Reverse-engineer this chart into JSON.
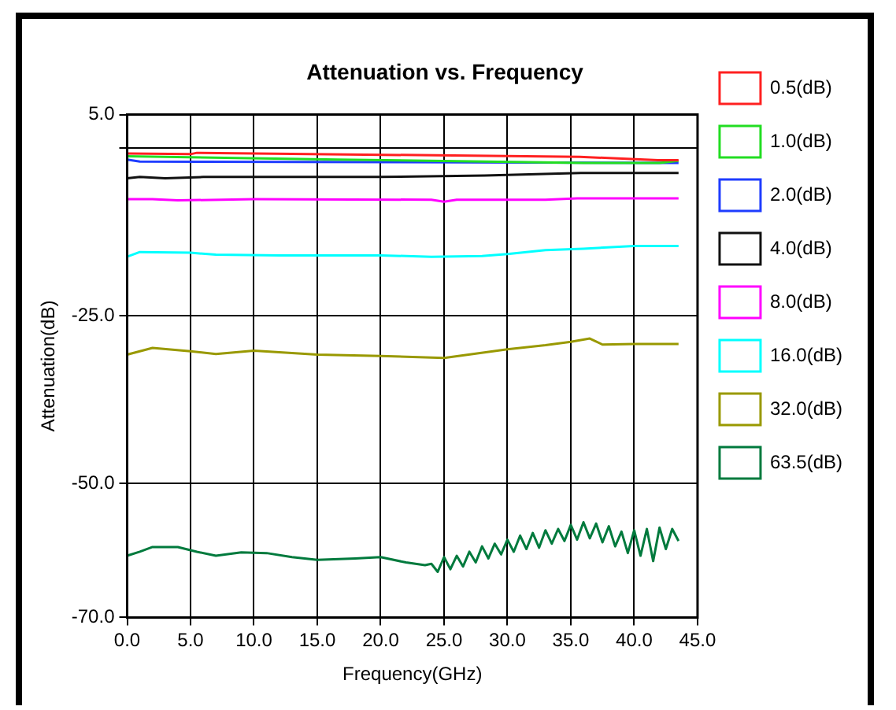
{
  "chart_data": {
    "type": "line",
    "title": "Attenuation vs. Frequency",
    "xlabel": "Frequency(GHz)",
    "ylabel": "Attenuation(dB)",
    "xlim": [
      0,
      45
    ],
    "xticks": [
      {
        "value": 0,
        "label": "0.0"
      },
      {
        "value": 5,
        "label": "5.0"
      },
      {
        "value": 10,
        "label": "10.0"
      },
      {
        "value": 15,
        "label": "15.0"
      },
      {
        "value": 20,
        "label": "20.0"
      },
      {
        "value": 25,
        "label": "25.0"
      },
      {
        "value": 30,
        "label": "30.0"
      },
      {
        "value": 35,
        "label": "35.0"
      },
      {
        "value": 40,
        "label": "40.0"
      },
      {
        "value": 45,
        "label": "45.0"
      }
    ],
    "ylim": [
      -70,
      5
    ],
    "yticks": [
      {
        "value": 5,
        "label": "5.0"
      },
      {
        "value": 0,
        "label": null
      },
      {
        "value": -25,
        "label": "-25.0"
      },
      {
        "value": -50,
        "label": "-50.0"
      },
      {
        "value": -70,
        "label": "-70.0"
      }
    ],
    "grid": true,
    "legend": "right",
    "marker": "none",
    "line_style": "solid",
    "series": [
      {
        "name": "0.5(dB)",
        "color": "#ff2020",
        "x": [
          0,
          5,
          5.5,
          35.7,
          41.9,
          43.5
        ],
        "values": [
          -0.8,
          -0.9,
          -0.7,
          -1.3,
          -1.8,
          -1.8
        ]
      },
      {
        "name": "1.0(dB)",
        "color": "#22dd22",
        "x": [
          0,
          16.6,
          36,
          42,
          43.5
        ],
        "values": [
          -1.2,
          -1.7,
          -2.2,
          -2.2,
          -1.9
        ]
      },
      {
        "name": "2.0(dB)",
        "color": "#1e3cff",
        "x": [
          0,
          1,
          43.5
        ],
        "values": [
          -1.7,
          -2.0,
          -2.2
        ]
      },
      {
        "name": "4.0(dB)",
        "color": "#111111",
        "x": [
          0,
          1,
          3,
          6,
          13,
          20,
          28.2,
          35.8,
          43.5
        ],
        "values": [
          -4.5,
          -4.3,
          -4.5,
          -4.3,
          -4.3,
          -4.3,
          -4.1,
          -3.7,
          -3.7
        ]
      },
      {
        "name": "8.0(dB)",
        "color": "#ff00ff",
        "x": [
          0,
          2,
          4,
          10,
          24,
          25,
          26,
          33,
          35.5,
          43.5
        ],
        "values": [
          -7.6,
          -7.6,
          -7.8,
          -7.6,
          -7.7,
          -8.0,
          -7.7,
          -7.7,
          -7.5,
          -7.5
        ]
      },
      {
        "name": "16.0(dB)",
        "color": "#00ffff",
        "x": [
          0,
          1,
          5,
          7,
          12,
          20,
          24,
          28,
          30,
          33,
          36,
          40,
          43.5
        ],
        "values": [
          -16.2,
          -15.5,
          -15.6,
          -15.9,
          -16.0,
          -16.0,
          -16.2,
          -16.1,
          -15.8,
          -15.2,
          -15.0,
          -14.6,
          -14.6
        ]
      },
      {
        "name": "32.0(dB)",
        "color": "#999900",
        "x": [
          0,
          2,
          5,
          7,
          10,
          15,
          20,
          25,
          30,
          33,
          35,
          36.5,
          37.5,
          40,
          43.5
        ],
        "values": [
          -30.8,
          -29.8,
          -30.3,
          -30.7,
          -30.2,
          -30.8,
          -31.0,
          -31.3,
          -30.0,
          -29.4,
          -28.9,
          -28.4,
          -29.3,
          -29.2,
          -29.2
        ]
      },
      {
        "name": "63.5(dB)",
        "color": "#007a3d",
        "x": [
          0,
          1,
          2,
          4,
          5.5,
          7,
          9,
          11,
          13,
          15,
          18,
          20,
          22,
          23.5,
          24,
          24.5,
          25,
          25.5,
          26,
          26.5,
          27,
          27.5,
          28,
          28.5,
          29,
          29.5,
          30,
          30.5,
          31,
          31.5,
          32,
          32.5,
          33,
          33.5,
          34,
          34.5,
          35,
          35.5,
          36,
          36.5,
          37,
          37.5,
          38,
          38.5,
          39,
          39.5,
          40,
          40.5,
          41,
          41.5,
          42,
          42.5,
          43,
          43.5
        ],
        "values": [
          -60.8,
          -60.2,
          -59.5,
          -59.5,
          -60.2,
          -60.8,
          -60.3,
          -60.4,
          -61.0,
          -61.4,
          -61.2,
          -61.0,
          -61.8,
          -62.2,
          -62.0,
          -63.2,
          -61.0,
          -62.8,
          -60.8,
          -62.4,
          -60.2,
          -61.8,
          -59.4,
          -61.2,
          -59.0,
          -60.6,
          -58.4,
          -60.2,
          -57.8,
          -59.8,
          -57.4,
          -59.6,
          -57.0,
          -59.0,
          -56.8,
          -58.6,
          -56.2,
          -58.4,
          -55.8,
          -58.2,
          -56.0,
          -58.8,
          -56.4,
          -59.4,
          -57.2,
          -60.4,
          -57.0,
          -60.8,
          -56.8,
          -61.6,
          -56.6,
          -59.8,
          -56.8,
          -58.6
        ]
      }
    ]
  }
}
